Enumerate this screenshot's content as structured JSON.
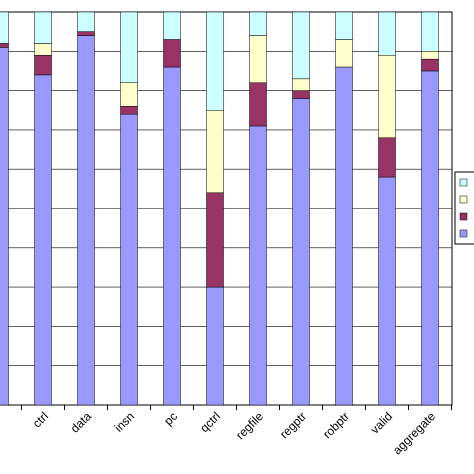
{
  "chart_data": {
    "type": "bar",
    "stacked": true,
    "percent": true,
    "categories": [
      "",
      "ctrl",
      "data",
      "insn",
      "pc",
      "qctrl",
      "regfile",
      "regptr",
      "robptr",
      "valid",
      "aggregate"
    ],
    "series": [
      {
        "color": "#9999ff",
        "values": [
          91,
          84,
          94,
          74,
          86,
          30,
          71,
          78,
          86,
          58,
          85
        ]
      },
      {
        "color": "#993366",
        "values": [
          1,
          5,
          1,
          2,
          7,
          24,
          11,
          2,
          0,
          10,
          3
        ]
      },
      {
        "color": "#ffffcc",
        "values": [
          0,
          3,
          0,
          6,
          0,
          21,
          12,
          3,
          7,
          21,
          2
        ]
      },
      {
        "color": "#ccffff",
        "values": [
          8,
          8,
          5,
          18,
          7,
          25,
          6,
          17,
          7,
          11,
          10
        ]
      }
    ],
    "ylim": [
      0,
      100
    ],
    "grid": true,
    "legend": "right"
  }
}
